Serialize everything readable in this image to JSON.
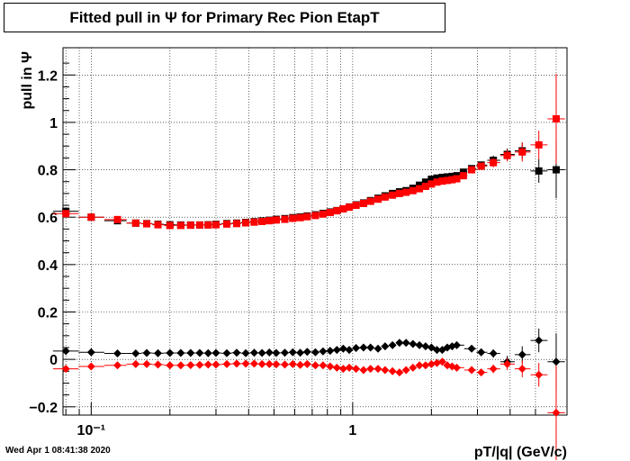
{
  "chart_data": {
    "type": "scatter",
    "title": "Fitted pull in  Ψ  for Primary Rec Pion EtapT",
    "xlabel": "pT/|q| (GeV/c)",
    "ylabel": "pull in  Ψ",
    "xscale": "log",
    "xlim": [
      0.078,
      6.6
    ],
    "ylim": [
      -0.235,
      1.315
    ],
    "grid": true,
    "yticks": [
      -0.2,
      0,
      0.2,
      0.4,
      0.6,
      0.8,
      1,
      1.2
    ],
    "ytick_labels": [
      "−0.2",
      "0",
      "0.2",
      "0.4",
      "0.6",
      "0.8",
      "1",
      "1.2"
    ],
    "xticks": [
      0.1,
      1
    ],
    "xtick_labels": [
      "10⁻¹",
      "1"
    ],
    "series": [
      {
        "marker": "square",
        "color": "#000000",
        "points": [
          [
            0.08,
            0.625
          ],
          [
            0.1,
            0.6
          ],
          [
            0.126,
            0.585
          ],
          [
            0.148,
            0.575
          ],
          [
            0.163,
            0.573
          ],
          [
            0.18,
            0.57
          ],
          [
            0.2,
            0.568
          ],
          [
            0.22,
            0.567
          ],
          [
            0.24,
            0.567
          ],
          [
            0.26,
            0.567
          ],
          [
            0.28,
            0.568
          ],
          [
            0.3,
            0.57
          ],
          [
            0.33,
            0.573
          ],
          [
            0.36,
            0.575
          ],
          [
            0.39,
            0.578
          ],
          [
            0.42,
            0.581
          ],
          [
            0.45,
            0.584
          ],
          [
            0.48,
            0.587
          ],
          [
            0.51,
            0.591
          ],
          [
            0.55,
            0.594
          ],
          [
            0.59,
            0.598
          ],
          [
            0.63,
            0.601
          ],
          [
            0.67,
            0.605
          ],
          [
            0.72,
            0.61
          ],
          [
            0.77,
            0.616
          ],
          [
            0.82,
            0.622
          ],
          [
            0.87,
            0.628
          ],
          [
            0.92,
            0.635
          ],
          [
            0.97,
            0.643
          ],
          [
            1.03,
            0.652
          ],
          [
            1.1,
            0.66
          ],
          [
            1.17,
            0.67
          ],
          [
            1.25,
            0.68
          ],
          [
            1.33,
            0.69
          ],
          [
            1.42,
            0.7
          ],
          [
            1.51,
            0.707
          ],
          [
            1.6,
            0.712
          ],
          [
            1.7,
            0.722
          ],
          [
            1.8,
            0.735
          ],
          [
            1.9,
            0.748
          ],
          [
            2.0,
            0.76
          ],
          [
            2.1,
            0.765
          ],
          [
            2.2,
            0.768
          ],
          [
            2.3,
            0.77
          ],
          [
            2.4,
            0.772
          ],
          [
            2.5,
            0.775
          ],
          [
            2.65,
            0.79
          ],
          [
            2.85,
            0.805
          ],
          [
            3.1,
            0.82
          ],
          [
            3.45,
            0.84
          ],
          [
            3.9,
            0.865
          ],
          [
            4.45,
            0.88
          ],
          [
            5.15,
            0.795
          ],
          [
            6.0,
            0.8
          ]
        ],
        "errors": [
          0.012,
          0.008,
          0.006,
          0.005,
          0.005,
          0.005,
          0.004,
          0.004,
          0.004,
          0.004,
          0.004,
          0.004,
          0.004,
          0.004,
          0.004,
          0.004,
          0.004,
          0.004,
          0.004,
          0.004,
          0.004,
          0.004,
          0.004,
          0.004,
          0.004,
          0.004,
          0.004,
          0.004,
          0.004,
          0.004,
          0.004,
          0.004,
          0.005,
          0.005,
          0.005,
          0.005,
          0.006,
          0.006,
          0.006,
          0.007,
          0.007,
          0.008,
          0.008,
          0.008,
          0.009,
          0.009,
          0.01,
          0.012,
          0.015,
          0.02,
          0.025,
          0.035,
          0.05,
          0.12
        ]
      },
      {
        "marker": "square",
        "color": "#ff0000",
        "points": [
          [
            0.08,
            0.615
          ],
          [
            0.1,
            0.6
          ],
          [
            0.126,
            0.59
          ],
          [
            0.148,
            0.575
          ],
          [
            0.163,
            0.572
          ],
          [
            0.18,
            0.568
          ],
          [
            0.2,
            0.565
          ],
          [
            0.22,
            0.565
          ],
          [
            0.24,
            0.566
          ],
          [
            0.26,
            0.567
          ],
          [
            0.28,
            0.567
          ],
          [
            0.3,
            0.568
          ],
          [
            0.33,
            0.571
          ],
          [
            0.36,
            0.573
          ],
          [
            0.39,
            0.576
          ],
          [
            0.42,
            0.579
          ],
          [
            0.45,
            0.582
          ],
          [
            0.48,
            0.585
          ],
          [
            0.51,
            0.588
          ],
          [
            0.55,
            0.591
          ],
          [
            0.59,
            0.595
          ],
          [
            0.63,
            0.598
          ],
          [
            0.67,
            0.602
          ],
          [
            0.72,
            0.607
          ],
          [
            0.77,
            0.613
          ],
          [
            0.82,
            0.62
          ],
          [
            0.87,
            0.627
          ],
          [
            0.92,
            0.635
          ],
          [
            0.97,
            0.642
          ],
          [
            1.03,
            0.65
          ],
          [
            1.1,
            0.658
          ],
          [
            1.17,
            0.667
          ],
          [
            1.25,
            0.676
          ],
          [
            1.33,
            0.685
          ],
          [
            1.42,
            0.693
          ],
          [
            1.51,
            0.7
          ],
          [
            1.6,
            0.705
          ],
          [
            1.7,
            0.712
          ],
          [
            1.8,
            0.72
          ],
          [
            1.9,
            0.73
          ],
          [
            2.0,
            0.74
          ],
          [
            2.1,
            0.748
          ],
          [
            2.2,
            0.752
          ],
          [
            2.3,
            0.755
          ],
          [
            2.4,
            0.758
          ],
          [
            2.5,
            0.762
          ],
          [
            2.65,
            0.775
          ],
          [
            2.85,
            0.8
          ],
          [
            3.1,
            0.815
          ],
          [
            3.45,
            0.83
          ],
          [
            3.9,
            0.86
          ],
          [
            4.45,
            0.875
          ],
          [
            5.15,
            0.905
          ],
          [
            6.0,
            1.015
          ]
        ],
        "errors": [
          0.012,
          0.008,
          0.006,
          0.005,
          0.005,
          0.005,
          0.004,
          0.004,
          0.004,
          0.004,
          0.004,
          0.004,
          0.004,
          0.004,
          0.004,
          0.004,
          0.004,
          0.004,
          0.004,
          0.004,
          0.004,
          0.004,
          0.004,
          0.004,
          0.004,
          0.004,
          0.004,
          0.004,
          0.004,
          0.004,
          0.004,
          0.004,
          0.005,
          0.005,
          0.005,
          0.005,
          0.006,
          0.006,
          0.006,
          0.007,
          0.007,
          0.008,
          0.008,
          0.008,
          0.009,
          0.009,
          0.01,
          0.012,
          0.015,
          0.02,
          0.025,
          0.04,
          0.06,
          0.19
        ]
      },
      {
        "marker": "diamond",
        "color": "#000000",
        "points": [
          [
            0.08,
            0.035
          ],
          [
            0.1,
            0.03
          ],
          [
            0.126,
            0.025
          ],
          [
            0.148,
            0.025
          ],
          [
            0.163,
            0.027
          ],
          [
            0.18,
            0.026
          ],
          [
            0.2,
            0.027
          ],
          [
            0.22,
            0.027
          ],
          [
            0.24,
            0.027
          ],
          [
            0.26,
            0.027
          ],
          [
            0.28,
            0.026
          ],
          [
            0.3,
            0.027
          ],
          [
            0.33,
            0.026
          ],
          [
            0.36,
            0.028
          ],
          [
            0.39,
            0.026
          ],
          [
            0.42,
            0.028
          ],
          [
            0.45,
            0.027
          ],
          [
            0.48,
            0.029
          ],
          [
            0.51,
            0.027
          ],
          [
            0.55,
            0.028
          ],
          [
            0.59,
            0.03
          ],
          [
            0.63,
            0.028
          ],
          [
            0.67,
            0.032
          ],
          [
            0.72,
            0.03
          ],
          [
            0.77,
            0.034
          ],
          [
            0.82,
            0.036
          ],
          [
            0.87,
            0.04
          ],
          [
            0.92,
            0.045
          ],
          [
            0.97,
            0.04
          ],
          [
            1.03,
            0.048
          ],
          [
            1.1,
            0.05
          ],
          [
            1.17,
            0.05
          ],
          [
            1.25,
            0.045
          ],
          [
            1.33,
            0.055
          ],
          [
            1.42,
            0.06
          ],
          [
            1.51,
            0.07
          ],
          [
            1.6,
            0.07
          ],
          [
            1.7,
            0.065
          ],
          [
            1.8,
            0.06
          ],
          [
            1.9,
            0.055
          ],
          [
            2.0,
            0.05
          ],
          [
            2.1,
            0.04
          ],
          [
            2.2,
            0.04
          ],
          [
            2.3,
            0.05
          ],
          [
            2.4,
            0.055
          ],
          [
            2.5,
            0.06
          ],
          [
            2.85,
            0.045
          ],
          [
            3.1,
            0.03
          ],
          [
            3.45,
            0.025
          ],
          [
            3.9,
            -0.01
          ],
          [
            4.45,
            0.02
          ],
          [
            5.15,
            0.08
          ],
          [
            6.0,
            -0.01
          ]
        ],
        "errors": [
          0.01,
          0.008,
          0.006,
          0.005,
          0.005,
          0.005,
          0.004,
          0.004,
          0.004,
          0.004,
          0.004,
          0.004,
          0.004,
          0.004,
          0.004,
          0.004,
          0.004,
          0.004,
          0.004,
          0.004,
          0.004,
          0.004,
          0.004,
          0.004,
          0.004,
          0.004,
          0.004,
          0.004,
          0.004,
          0.005,
          0.005,
          0.005,
          0.005,
          0.005,
          0.006,
          0.006,
          0.006,
          0.006,
          0.007,
          0.007,
          0.007,
          0.008,
          0.008,
          0.008,
          0.009,
          0.01,
          0.012,
          0.015,
          0.018,
          0.025,
          0.035,
          0.05,
          0.12
        ]
      },
      {
        "marker": "diamond",
        "color": "#ff0000",
        "points": [
          [
            0.08,
            -0.04
          ],
          [
            0.1,
            -0.03
          ],
          [
            0.126,
            -0.025
          ],
          [
            0.148,
            -0.02
          ],
          [
            0.163,
            -0.02
          ],
          [
            0.18,
            -0.022
          ],
          [
            0.2,
            -0.025
          ],
          [
            0.22,
            -0.025
          ],
          [
            0.24,
            -0.024
          ],
          [
            0.26,
            -0.023
          ],
          [
            0.28,
            -0.022
          ],
          [
            0.3,
            -0.022
          ],
          [
            0.33,
            -0.02
          ],
          [
            0.36,
            -0.018
          ],
          [
            0.39,
            -0.018
          ],
          [
            0.42,
            -0.018
          ],
          [
            0.45,
            -0.02
          ],
          [
            0.48,
            -0.02
          ],
          [
            0.51,
            -0.021
          ],
          [
            0.55,
            -0.022
          ],
          [
            0.59,
            -0.02
          ],
          [
            0.63,
            -0.023
          ],
          [
            0.67,
            -0.02
          ],
          [
            0.72,
            -0.025
          ],
          [
            0.77,
            -0.025
          ],
          [
            0.82,
            -0.03
          ],
          [
            0.87,
            -0.035
          ],
          [
            0.92,
            -0.04
          ],
          [
            0.97,
            -0.035
          ],
          [
            1.03,
            -0.04
          ],
          [
            1.1,
            -0.045
          ],
          [
            1.17,
            -0.04
          ],
          [
            1.25,
            -0.04
          ],
          [
            1.33,
            -0.045
          ],
          [
            1.42,
            -0.05
          ],
          [
            1.51,
            -0.055
          ],
          [
            1.6,
            -0.045
          ],
          [
            1.7,
            -0.035
          ],
          [
            1.8,
            -0.025
          ],
          [
            1.9,
            -0.025
          ],
          [
            2.0,
            -0.02
          ],
          [
            2.1,
            -0.015
          ],
          [
            2.2,
            -0.01
          ],
          [
            2.3,
            -0.025
          ],
          [
            2.4,
            -0.03
          ],
          [
            2.5,
            -0.035
          ],
          [
            2.85,
            -0.045
          ],
          [
            3.1,
            -0.055
          ],
          [
            3.45,
            -0.04
          ],
          [
            3.9,
            -0.02
          ],
          [
            4.45,
            -0.04
          ],
          [
            5.15,
            -0.065
          ],
          [
            6.0,
            -0.225
          ]
        ],
        "errors": [
          0.01,
          0.008,
          0.006,
          0.005,
          0.005,
          0.005,
          0.004,
          0.004,
          0.004,
          0.004,
          0.004,
          0.004,
          0.004,
          0.004,
          0.004,
          0.004,
          0.004,
          0.004,
          0.004,
          0.004,
          0.004,
          0.004,
          0.004,
          0.004,
          0.004,
          0.004,
          0.004,
          0.004,
          0.004,
          0.005,
          0.005,
          0.005,
          0.005,
          0.005,
          0.006,
          0.006,
          0.006,
          0.006,
          0.007,
          0.007,
          0.007,
          0.008,
          0.008,
          0.008,
          0.009,
          0.01,
          0.012,
          0.015,
          0.018,
          0.025,
          0.035,
          0.05,
          0.2
        ]
      }
    ]
  },
  "footer": {
    "datestamp": "Wed Apr  1 08:41:38 2020"
  }
}
